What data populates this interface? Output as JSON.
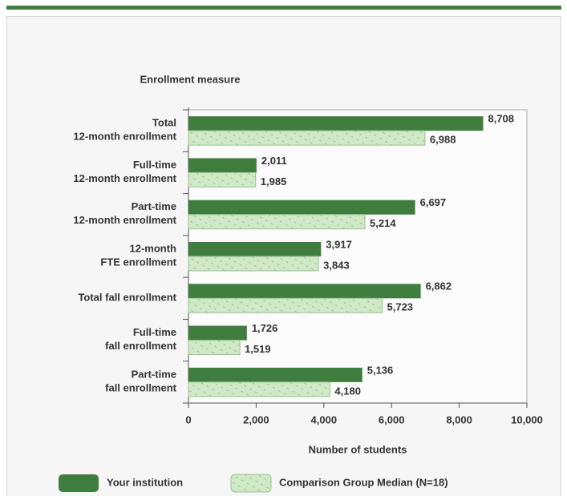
{
  "chart_data": {
    "type": "hbar",
    "ylabel": "Enrollment measure",
    "xlabel": "Number of students",
    "categories": [
      "Total\n12-month enrollment",
      "Full-time\n12-month enrollment",
      "Part-time\n12-month enrollment",
      "12-month\nFTE enrollment",
      "Total fall enrollment",
      "Full-time\nfall enrollment",
      "Part-time\nfall enrollment"
    ],
    "series": [
      {
        "name": "Your institution",
        "color": "#3f7d3f",
        "hatch": false,
        "values": [
          8708,
          2011,
          6697,
          3917,
          6862,
          1726,
          5136
        ],
        "value_labels": [
          "8,708",
          "2,011",
          "6,697",
          "3,917",
          "6,862",
          "1,726",
          "5,136"
        ]
      },
      {
        "name": "Comparison Group Median (N=18)",
        "color": "#cfe8c6",
        "hatch": true,
        "values": [
          6988,
          1985,
          5214,
          3843,
          5723,
          1519,
          4180
        ],
        "value_labels": [
          "6,988",
          "1,985",
          "5,214",
          "3,843",
          "5,723",
          "1,519",
          "4,180"
        ]
      }
    ],
    "xlim": [
      0,
      10000
    ],
    "xticks": [
      0,
      {
        "value": 2000,
        "label": "2,000"
      },
      {
        "value": 4000,
        "label": "4,000"
      },
      {
        "value": 6000,
        "label": "6,000"
      },
      {
        "value": 8000,
        "label": "8,000"
      },
      {
        "value": 10000,
        "label": "10,000"
      }
    ]
  }
}
